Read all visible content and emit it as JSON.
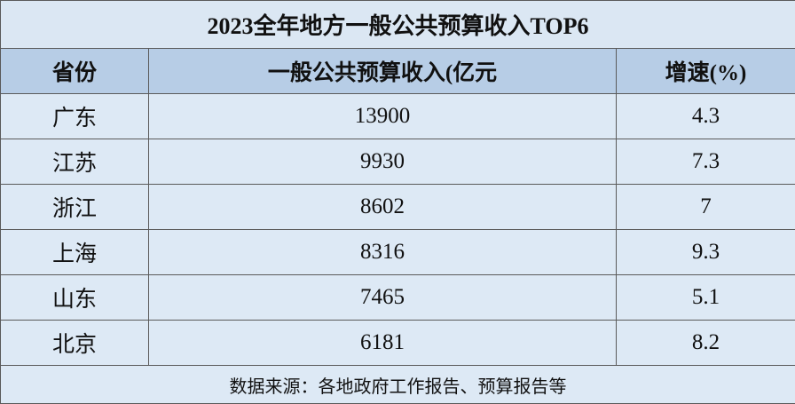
{
  "table": {
    "title": "2023全年地方一般公共预算收入TOP6",
    "header": [
      "省份",
      "一般公共预算收入(亿元",
      "增速(%)"
    ],
    "rows": [
      [
        "广东",
        "13900",
        "4.3"
      ],
      [
        "江苏",
        "9930",
        "7.3"
      ],
      [
        "浙江",
        "8602",
        "7"
      ],
      [
        "上海",
        "8316",
        "9.3"
      ],
      [
        "山东",
        "7465",
        "5.1"
      ],
      [
        "北京",
        "6181",
        "8.2"
      ]
    ],
    "footer": "数据来源：各地政府工作报告、预算报告等"
  }
}
